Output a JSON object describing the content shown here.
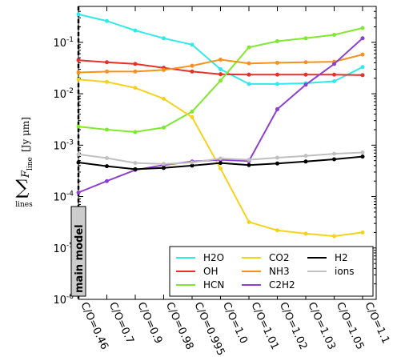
{
  "chart_data": {
    "type": "line",
    "ylabel": "∑ F_line [Jy μm]",
    "ylabel_parts": {
      "sum": "∑",
      "sum_sub": "lines",
      "var": "F",
      "var_sub": "line",
      "unit": "[Jy μm]"
    },
    "yscale": "log",
    "ylim": [
      1e-06,
      0.5
    ],
    "y_ticks": [
      {
        "value": 1e-06,
        "base": "10",
        "exp": "-6"
      },
      {
        "value": 1e-05,
        "base": "10",
        "exp": "-5"
      },
      {
        "value": 0.0001,
        "base": "10",
        "exp": "-4"
      },
      {
        "value": 0.001,
        "base": "10",
        "exp": "-3"
      },
      {
        "value": 0.01,
        "base": "10",
        "exp": "-2"
      },
      {
        "value": 0.1,
        "base": "10",
        "exp": "-1"
      }
    ],
    "categories": [
      "C/O=0.46",
      "C/O=0.7",
      "C/O=0.9",
      "C/O=0.98",
      "C/O=0.995",
      "C/O=1.0",
      "C/O=1.01",
      "C/O=1.02",
      "C/O=1.03",
      "C/O=1.05",
      "C/O=1.1"
    ],
    "annotation": "main model",
    "series": [
      {
        "name": "H2O",
        "color": "#33e8e8",
        "values": [
          0.35,
          0.26,
          0.17,
          0.12,
          0.09,
          0.03,
          0.0155,
          0.0155,
          0.016,
          0.0175,
          0.033
        ]
      },
      {
        "name": "OH",
        "color": "#e8302a",
        "values": [
          0.045,
          0.041,
          0.038,
          0.032,
          0.027,
          0.024,
          0.0235,
          0.0235,
          0.0235,
          0.0235,
          0.023
        ]
      },
      {
        "name": "HCN",
        "color": "#80e830",
        "values": [
          0.0023,
          0.002,
          0.0018,
          0.0022,
          0.0045,
          0.018,
          0.08,
          0.105,
          0.12,
          0.14,
          0.19
        ]
      },
      {
        "name": "CO2",
        "color": "#f5d21e",
        "values": [
          0.019,
          0.017,
          0.013,
          0.008,
          0.0035,
          0.00035,
          3.2e-05,
          2.2e-05,
          1.9e-05,
          1.7e-05,
          2e-05
        ]
      },
      {
        "name": "NH3",
        "color": "#f5921e",
        "values": [
          0.026,
          0.027,
          0.027,
          0.029,
          0.035,
          0.046,
          0.039,
          0.04,
          0.041,
          0.042,
          0.058
        ]
      },
      {
        "name": "C2H2",
        "color": "#8e3fcf",
        "values": [
          0.00012,
          0.0002,
          0.00033,
          0.00041,
          0.00048,
          0.00052,
          0.00049,
          0.005,
          0.015,
          0.038,
          0.12
        ]
      },
      {
        "name": "H2",
        "color": "#000000",
        "values": [
          0.00046,
          0.00039,
          0.00034,
          0.00036,
          0.0004,
          0.00045,
          0.00041,
          0.00044,
          0.00048,
          0.00053,
          0.0006
        ]
      },
      {
        "name": "ions",
        "color": "#c0c0c0",
        "values": [
          0.00066,
          0.00056,
          0.00045,
          0.00043,
          0.00046,
          0.00055,
          0.00052,
          0.00057,
          0.00062,
          0.00068,
          0.00072
        ]
      }
    ],
    "legend": {
      "location": "lower-right",
      "columns": 3,
      "order": [
        "H2O",
        "OH",
        "HCN",
        "CO2",
        "NH3",
        "C2H2",
        "H2",
        "ions"
      ]
    }
  }
}
